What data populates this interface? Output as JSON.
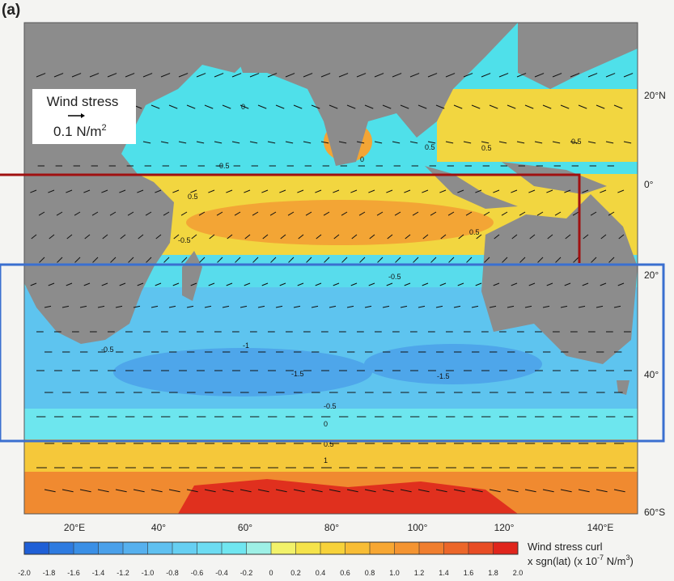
{
  "panel_label": "(a)",
  "legend": {
    "title": "Wind stress",
    "scale": "0.1 N/m",
    "scale_exp": "2"
  },
  "lat_labels": [
    "20°N",
    "0°",
    "20°",
    "40°",
    "60°S"
  ],
  "lon_labels": [
    "20°E",
    "40°",
    "60°",
    "80°",
    "100°",
    "120°",
    "140°E"
  ],
  "contour_labels": [
    "0",
    "-0.5",
    "0.5",
    "0",
    "0.5",
    "-0.5",
    "0.5",
    "0.5",
    "0.5",
    "-0.5",
    "-1",
    "-1.5",
    "-1.5",
    "-0.5",
    "-0.5",
    "0",
    "0.5",
    "1"
  ],
  "colorbar": {
    "ticks": [
      {
        "value": -2,
        "label": "-2.0"
      },
      -1.8,
      -1.6,
      -1.4,
      -1.2,
      {
        "value": -1,
        "label": "-1.0"
      },
      -0.8,
      -0.6,
      -0.4,
      -0.2,
      0,
      0.2,
      0.4,
      0.6,
      0.8,
      {
        "value": 1,
        "label": "1.0"
      },
      1.2,
      1.4,
      1.6,
      1.8,
      {
        "value": 2,
        "label": "2.0"
      }
    ],
    "lim": [
      -2,
      2
    ],
    "colors": [
      "#1f5fd6",
      "#2e7be0",
      "#3a8fe6",
      "#4aa0ea",
      "#56b0ee",
      "#5fc0f0",
      "#66cff2",
      "#6ddcf2",
      "#70e6f0",
      "#9ef0e6",
      "#f2f26a",
      "#f5e34a",
      "#f7d23a",
      "#f8bd35",
      "#f7a733",
      "#f49431",
      "#f07e2e",
      "#ec6629",
      "#e84c24",
      "#e0251c"
    ],
    "title": "Wind stress curl",
    "subtitle": "x sgn(lat) (x 10",
    "exp1": "-7",
    "unit": " N/m",
    "exp2": "3",
    "end": ")"
  }
}
